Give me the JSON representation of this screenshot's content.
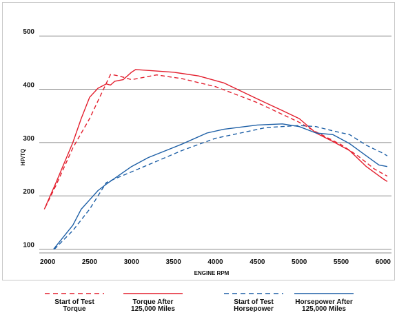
{
  "chart_data": {
    "type": "line",
    "xlabel": "ENGINE RPM",
    "ylabel": "HP/TQ",
    "xlim": [
      1900,
      6100
    ],
    "ylim": [
      93,
      530
    ],
    "xticks": [
      2000,
      2500,
      3000,
      3500,
      4000,
      4500,
      5000,
      5500,
      6000
    ],
    "yticks": [
      100,
      200,
      300,
      400,
      500
    ],
    "grid": "horizontal",
    "legend_position": "bottom",
    "colors": {
      "torque": "#e31e2d",
      "horsepower": "#1d5fa6"
    },
    "series": [
      {
        "name": "Start of Test Torque",
        "legend_lines": [
          "Start of Test",
          "Torque"
        ],
        "color": "#e31e2d",
        "dash": true,
        "points": [
          [
            1970,
            178
          ],
          [
            2100,
            220
          ],
          [
            2300,
            290
          ],
          [
            2500,
            345
          ],
          [
            2650,
            395
          ],
          [
            2750,
            428
          ],
          [
            2850,
            425
          ],
          [
            3000,
            418
          ],
          [
            3300,
            427
          ],
          [
            3600,
            420
          ],
          [
            4000,
            405
          ],
          [
            4500,
            375
          ],
          [
            5000,
            338
          ],
          [
            5200,
            320
          ],
          [
            5500,
            296
          ],
          [
            5700,
            275
          ],
          [
            5900,
            250
          ],
          [
            6050,
            237
          ]
        ]
      },
      {
        "name": "Torque After 125,000 Miles",
        "legend_lines": [
          "Torque After",
          "125,000 Miles"
        ],
        "color": "#e31e2d",
        "dash": false,
        "points": [
          [
            1960,
            175
          ],
          [
            2100,
            225
          ],
          [
            2300,
            300
          ],
          [
            2400,
            345
          ],
          [
            2500,
            385
          ],
          [
            2600,
            402
          ],
          [
            2700,
            410
          ],
          [
            2750,
            408
          ],
          [
            2800,
            415
          ],
          [
            2900,
            418
          ],
          [
            3000,
            432
          ],
          [
            3050,
            437
          ],
          [
            3500,
            432
          ],
          [
            3800,
            425
          ],
          [
            4100,
            412
          ],
          [
            4500,
            382
          ],
          [
            4800,
            360
          ],
          [
            5000,
            345
          ],
          [
            5200,
            318
          ],
          [
            5400,
            302
          ],
          [
            5600,
            285
          ],
          [
            5800,
            255
          ],
          [
            6000,
            232
          ],
          [
            6050,
            227
          ]
        ]
      },
      {
        "name": "Start of Test Horsepower",
        "legend_lines": [
          "Start of Test",
          "Horsepower"
        ],
        "color": "#1d5fa6",
        "dash": true,
        "points": [
          [
            2080,
            100
          ],
          [
            2300,
            135
          ],
          [
            2500,
            175
          ],
          [
            2700,
            225
          ],
          [
            2800,
            232
          ],
          [
            3000,
            245
          ],
          [
            3300,
            265
          ],
          [
            3600,
            285
          ],
          [
            4000,
            308
          ],
          [
            4300,
            318
          ],
          [
            4600,
            328
          ],
          [
            5000,
            332
          ],
          [
            5200,
            330
          ],
          [
            5400,
            322
          ],
          [
            5600,
            315
          ],
          [
            5800,
            295
          ],
          [
            6000,
            280
          ],
          [
            6050,
            275
          ]
        ]
      },
      {
        "name": "Horsepower After 125,000 Miles",
        "legend_lines": [
          "Horsepower After",
          "125,000 Miles"
        ],
        "color": "#1d5fa6",
        "dash": false,
        "points": [
          [
            2070,
            100
          ],
          [
            2300,
            145
          ],
          [
            2400,
            175
          ],
          [
            2600,
            210
          ],
          [
            2700,
            222
          ],
          [
            3000,
            255
          ],
          [
            3200,
            272
          ],
          [
            3600,
            297
          ],
          [
            3900,
            318
          ],
          [
            4100,
            325
          ],
          [
            4500,
            333
          ],
          [
            4800,
            335
          ],
          [
            5000,
            330
          ],
          [
            5200,
            318
          ],
          [
            5400,
            315
          ],
          [
            5600,
            298
          ],
          [
            5800,
            275
          ],
          [
            5950,
            258
          ],
          [
            6050,
            255
          ]
        ]
      }
    ]
  }
}
